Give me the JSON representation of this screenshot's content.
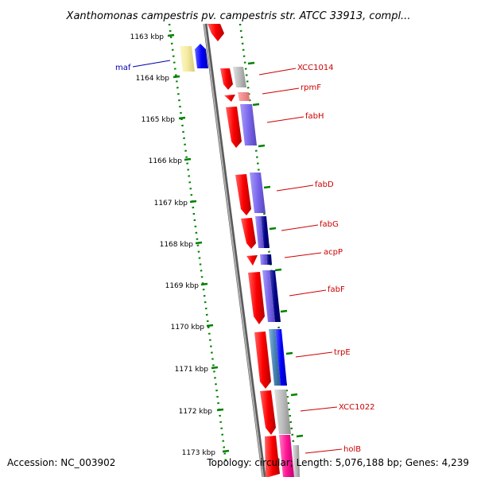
{
  "title": "Xanthomonas campestris pv. campestris str. ATCC 33913, compl...",
  "accession": "Accession: NC_003902",
  "topology": "Topology: circular; Length: 5,076,188 bp; Genes: 4,239",
  "ticks": [
    "1163 kbp",
    "1164 kbp",
    "1165 kbp",
    "1166 kbp",
    "1167 kbp",
    "1168 kbp",
    "1169 kbp",
    "1170 kbp",
    "1171 kbp",
    "1172 kbp",
    "1173 kbp"
  ],
  "genes": [
    {
      "label": "maf",
      "color": "#0000aa"
    },
    {
      "label": "XCC1014",
      "color": "#cc0000"
    },
    {
      "label": "rpmF",
      "color": "#cc0000"
    },
    {
      "label": "fabH",
      "color": "#cc0000"
    },
    {
      "label": "fabD",
      "color": "#cc0000"
    },
    {
      "label": "fabG",
      "color": "#cc0000"
    },
    {
      "label": "acpP",
      "color": "#cc0000"
    },
    {
      "label": "fabF",
      "color": "#cc0000"
    },
    {
      "label": "trpE",
      "color": "#cc0000"
    },
    {
      "label": "XCC1022",
      "color": "#cc0000"
    },
    {
      "label": "holB",
      "color": "#cc0000"
    }
  ],
  "colors": {
    "backbone": "#888888",
    "tick": "#008000",
    "gene_red": "#ff0000",
    "gene_blue": "#0000ff",
    "gene_purple": "#7b68ee",
    "gene_navy": "#00008b",
    "gene_gray": "#bbbbbb",
    "gene_pink": "#ff1493",
    "gene_yellow": "#f5eba0",
    "gene_steel": "#4682b4"
  }
}
